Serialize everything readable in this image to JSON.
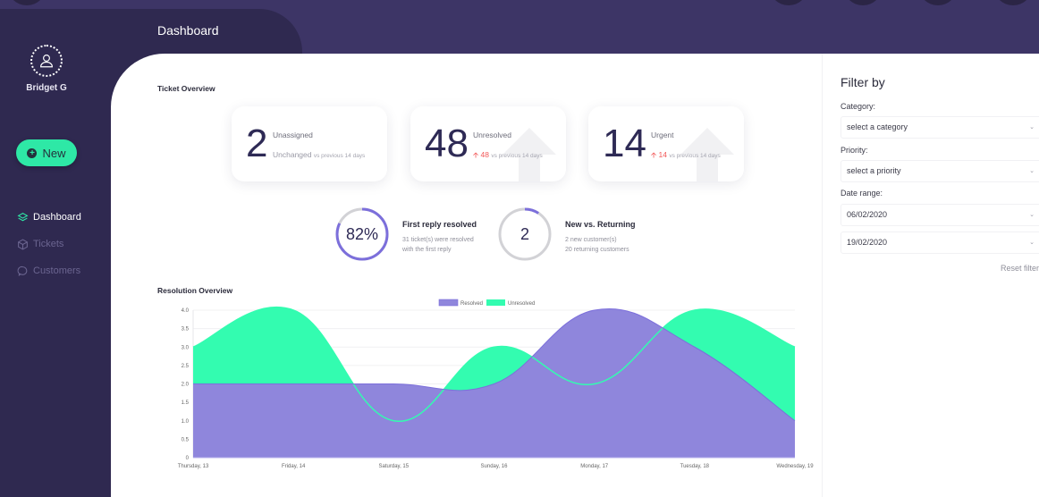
{
  "app": {
    "page_title": "Dashboard"
  },
  "user": {
    "name": "Bridget G",
    "avatar_icon": "user-icon"
  },
  "sidebar": {
    "new_button": {
      "label": "New",
      "icon": "plus-circle-icon"
    },
    "items": [
      {
        "label": "Dashboard",
        "icon": "layers-icon",
        "active": true
      },
      {
        "label": "Tickets",
        "icon": "box-icon",
        "active": false
      },
      {
        "label": "Customers",
        "icon": "chat-bubble-icon",
        "active": false
      }
    ]
  },
  "ticket_overview": {
    "title": "Ticket Overview",
    "cards": [
      {
        "value": "2",
        "label": "Unassigned",
        "change": "Unchanged",
        "suffix": "vs previous 14 days",
        "trend": "none"
      },
      {
        "value": "48",
        "label": "Unresolved",
        "change": "48",
        "suffix": "vs previous 14 days",
        "trend": "up"
      },
      {
        "value": "14",
        "label": "Urgent",
        "change": "14",
        "suffix": "vs previous 14 days",
        "trend": "up"
      }
    ]
  },
  "stats": [
    {
      "ring_value": "82%",
      "percent": 82,
      "title": "First reply resolved",
      "line1": "31 ticket(s) were resolved",
      "line2": "with the first reply"
    },
    {
      "ring_value": "2",
      "percent": 9,
      "title": "New vs. Returning",
      "line1": "2 new customer(s)",
      "line2": "20 returning customers"
    }
  ],
  "resolution_overview": {
    "title": "Resolution Overview"
  },
  "filter": {
    "title": "Filter by",
    "category_label": "Category:",
    "category_value": "select a category",
    "priority_label": "Priority:",
    "priority_value": "select a priority",
    "date_label": "Date range:",
    "date_from": "06/02/2020",
    "date_to": "19/02/2020",
    "reset_label": "Reset filter"
  },
  "colors": {
    "brand_dark": "#2f2950",
    "header_bg": "#3d3566",
    "accent_green": "#2ee8a6",
    "resolved": "#8f86dc",
    "unresolved": "#33fcb0",
    "alert_red": "#f25757"
  },
  "chart_data": {
    "type": "area",
    "title": "Resolution Overview",
    "categories": [
      "Thursday, 13",
      "Friday, 14",
      "Saturday, 15",
      "Sunday, 16",
      "Monday, 17",
      "Tuesday, 18",
      "Wednesday, 19"
    ],
    "series": [
      {
        "name": "Resolved",
        "values": [
          2,
          2,
          2,
          2,
          4,
          3,
          1
        ],
        "color": "#8f86dc"
      },
      {
        "name": "Unresolved",
        "values": [
          3,
          4,
          1,
          3,
          2,
          4,
          3
        ],
        "color": "#33fcb0"
      }
    ],
    "yticks": [
      "0",
      "0.5",
      "1.0",
      "1.5",
      "2.0",
      "2.5",
      "3.0",
      "3.5",
      "4.0"
    ],
    "ylim": [
      0,
      4
    ],
    "legend_position": "top",
    "grid": true,
    "xlabel": "",
    "ylabel": ""
  }
}
